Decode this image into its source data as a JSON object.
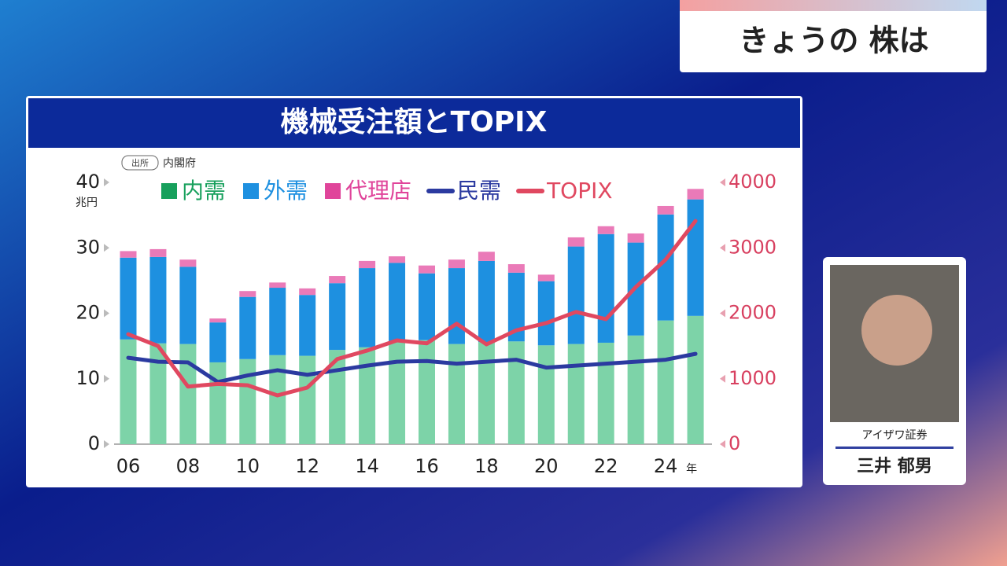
{
  "header": {
    "title": "きょうの 株は"
  },
  "guest": {
    "company": "アイザワ証券",
    "name": "三井 郁男"
  },
  "chart_data": {
    "type": "bar",
    "stacked": true,
    "title": "機械受注額とTOPIX",
    "source_label": "出所",
    "source": "内閣府",
    "y_unit": "兆円",
    "x_unit": "年",
    "categories": [
      "06",
      null,
      "08",
      null,
      "10",
      null,
      "12",
      null,
      "14",
      null,
      "16",
      null,
      "18",
      null,
      "20",
      null,
      "22",
      null,
      "24",
      null
    ],
    "series": [
      {
        "name": "内需",
        "type": "bar",
        "color": "#7dd3a8",
        "legend_color": "#17a05c",
        "values": [
          16.0,
          15.4,
          15.3,
          12.5,
          13.0,
          13.6,
          13.5,
          14.4,
          14.8,
          15.6,
          15.9,
          15.3,
          15.6,
          15.7,
          15.1,
          15.3,
          15.5,
          16.6,
          18.9,
          19.6
        ]
      },
      {
        "name": "外需",
        "type": "bar",
        "color": "#1e90e0",
        "values": [
          12.5,
          13.2,
          11.8,
          6.1,
          9.5,
          10.3,
          9.3,
          10.2,
          12.1,
          12.1,
          10.2,
          11.6,
          12.4,
          10.5,
          9.8,
          14.9,
          16.6,
          14.2,
          16.2,
          17.8
        ]
      },
      {
        "name": "代理店",
        "type": "bar",
        "color": "#ea7ab8",
        "legend_color": "#e0449a",
        "values": [
          1.0,
          1.2,
          1.1,
          0.6,
          0.9,
          0.8,
          1.0,
          1.1,
          1.1,
          1.0,
          1.2,
          1.3,
          1.4,
          1.3,
          1.0,
          1.4,
          1.2,
          1.4,
          1.3,
          1.6
        ]
      },
      {
        "name": "民需",
        "type": "line",
        "color": "#2b3aa0",
        "values": [
          13.2,
          12.6,
          12.5,
          9.5,
          10.5,
          11.3,
          10.6,
          11.3,
          12.0,
          12.6,
          12.7,
          12.3,
          12.6,
          12.9,
          11.7,
          12.0,
          12.3,
          12.6,
          12.9,
          13.8
        ]
      },
      {
        "name": "TOPIX",
        "type": "line",
        "axis": "y2",
        "color": "#e04860",
        "values": [
          1680,
          1500,
          880,
          920,
          900,
          745,
          865,
          1300,
          1430,
          1585,
          1540,
          1840,
          1525,
          1740,
          1850,
          2020,
          1910,
          2400,
          2820,
          3410
        ]
      }
    ],
    "ylim": [
      0,
      40
    ],
    "yticks": [
      0,
      10,
      20,
      30,
      40
    ],
    "y2lim": [
      0,
      4000
    ],
    "y2ticks": [
      0,
      1000,
      2000,
      3000,
      4000
    ]
  }
}
